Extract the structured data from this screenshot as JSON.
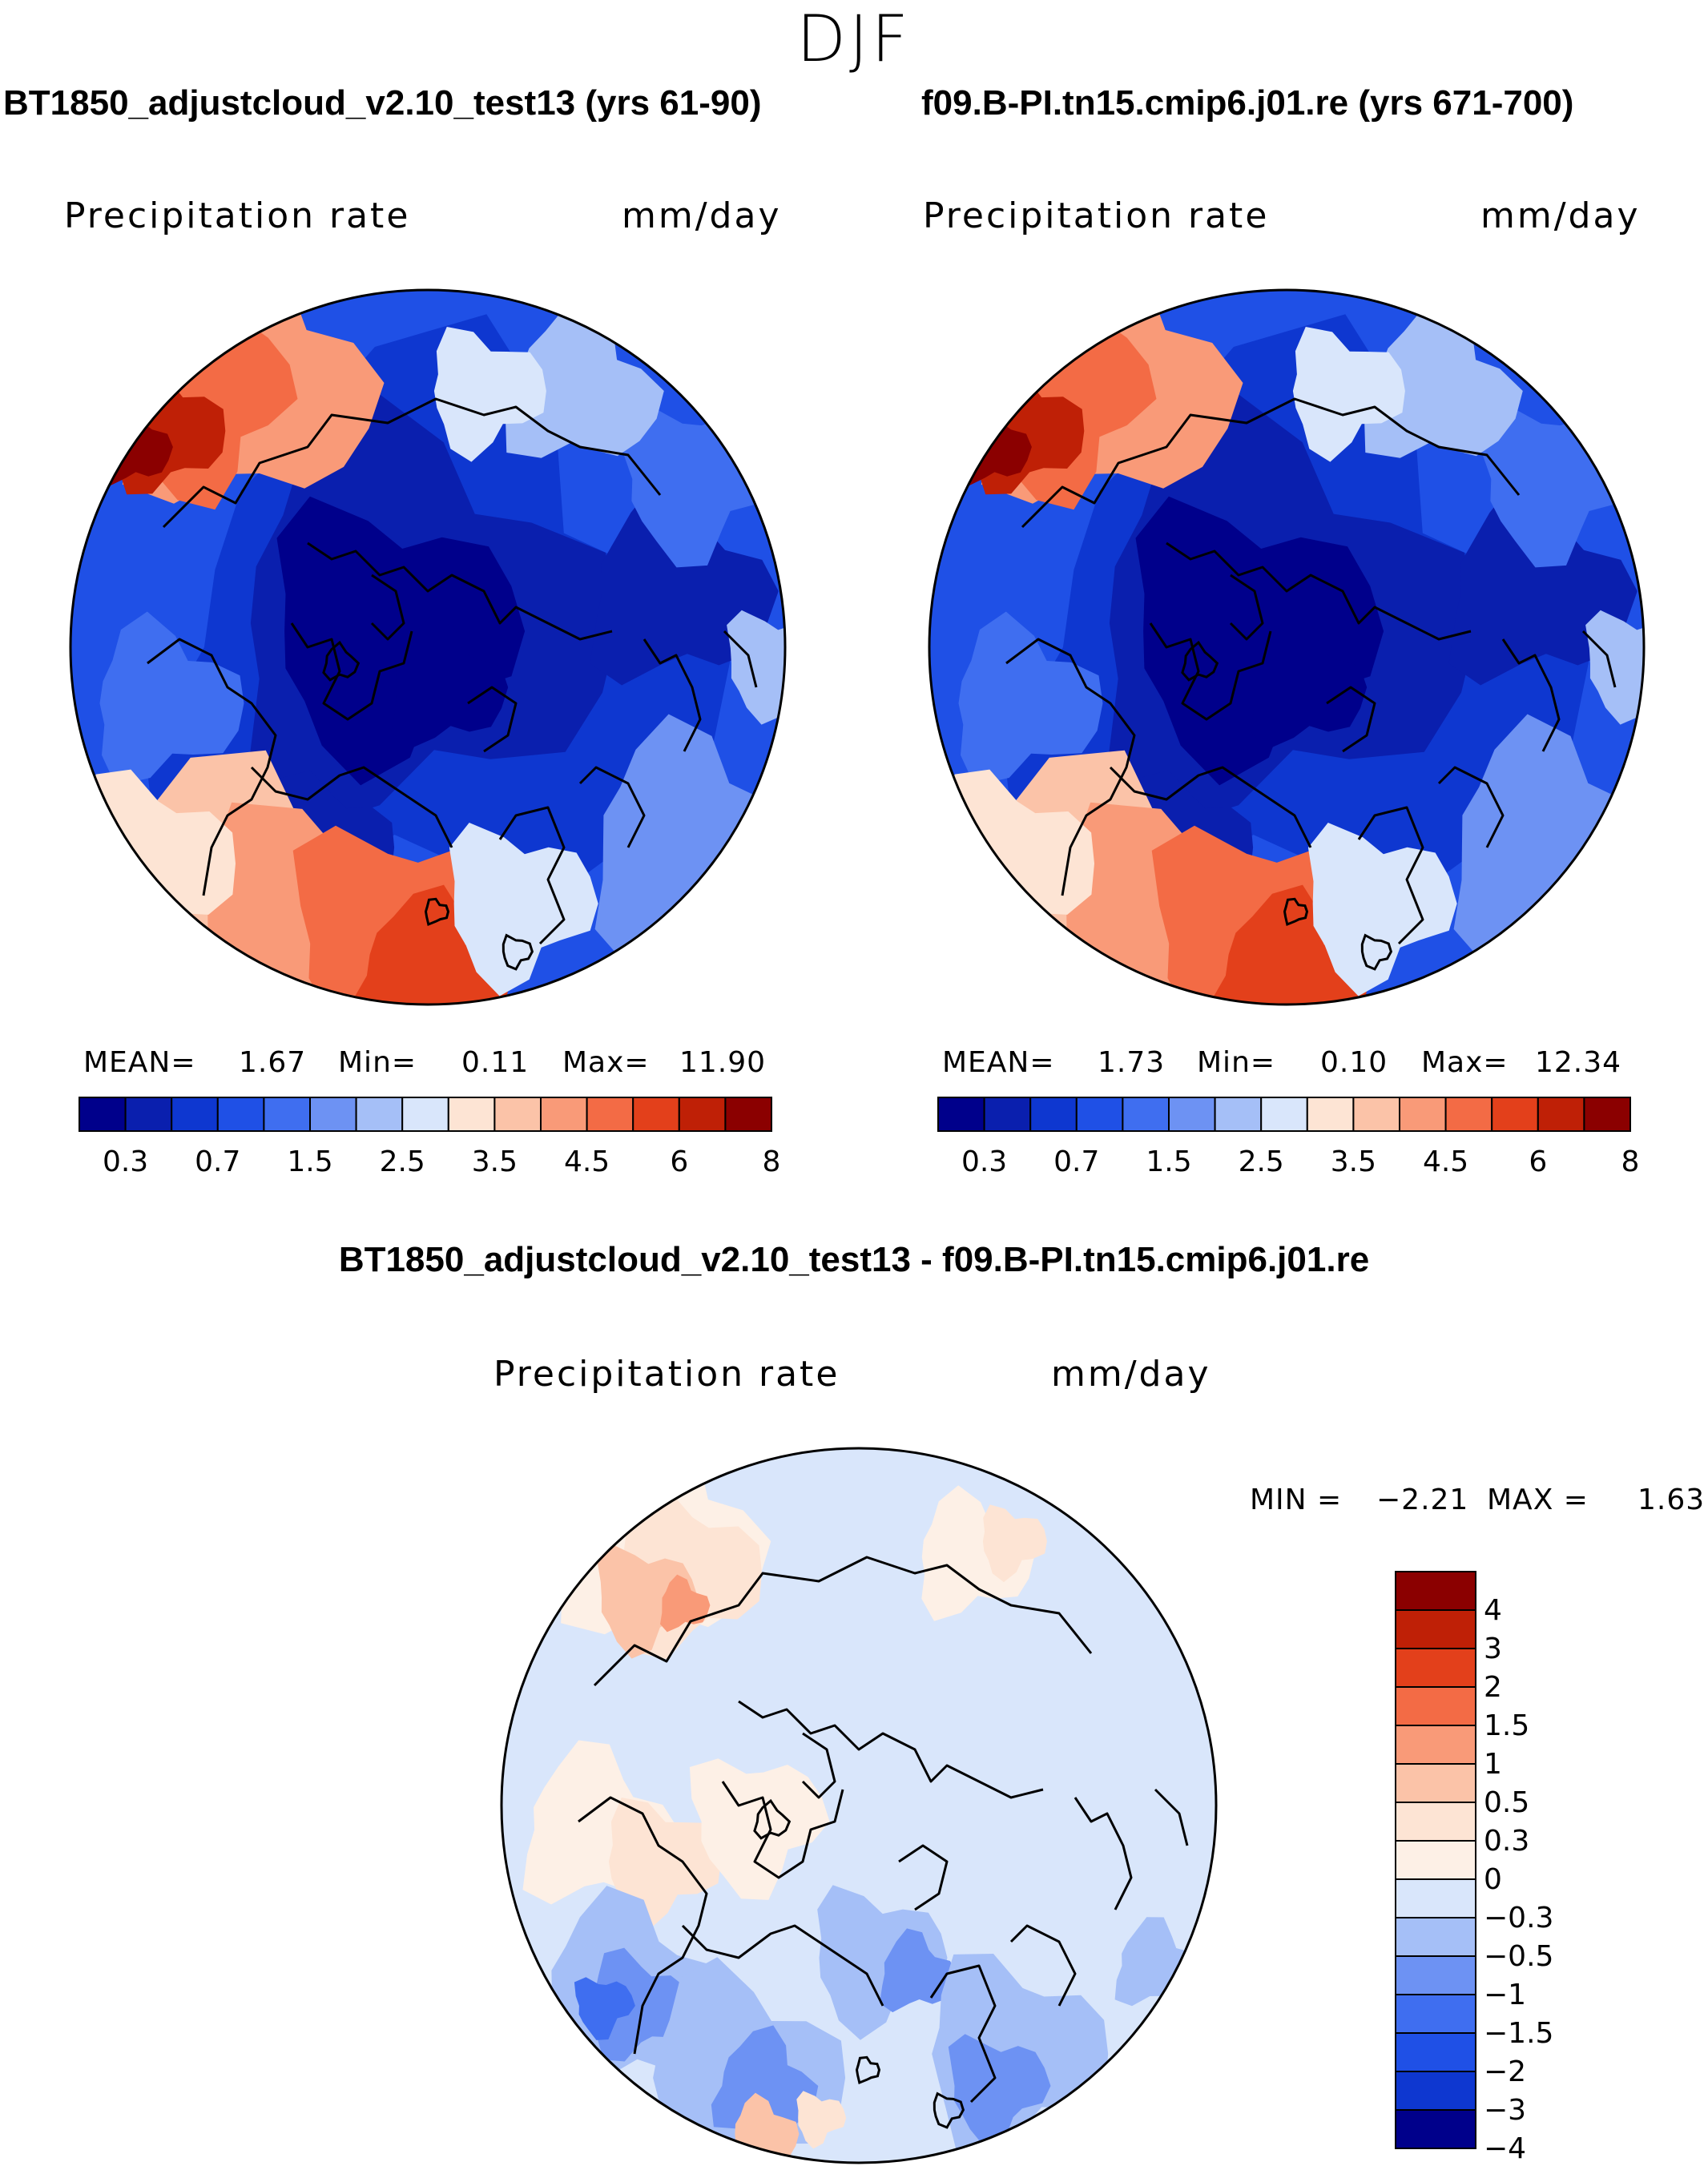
{
  "season": "DJF",
  "panels": [
    {
      "case_title": "BT1850_adjustcloud_v2.10_test13 (yrs 61-90)",
      "variable": "Precipitation rate",
      "units": "mm/day",
      "stats": {
        "mean_label": "MEAN=",
        "mean": "1.67",
        "min_label": "Min=",
        "min": "0.11",
        "max_label": "Max=",
        "max": "11.90"
      }
    },
    {
      "case_title": "f09.B-PI.tn15.cmip6.j01.re (yrs 671-700)",
      "variable": "Precipitation rate",
      "units": "mm/day",
      "stats": {
        "mean_label": "MEAN=",
        "mean": "1.73",
        "min_label": "Min=",
        "min": "0.10",
        "max_label": "Max=",
        "max": "12.34"
      }
    }
  ],
  "diff_panel": {
    "title": "BT1850_adjustcloud_v2.10_test13 - f09.B-PI.tn15.cmip6.j01.re",
    "variable": "Precipitation rate",
    "units": "mm/day",
    "min_label": "MIN =",
    "min": "−2.21",
    "max_label": "MAX =",
    "max": "1.63"
  },
  "chart_data": [
    {
      "type": "heatmap",
      "projection": "north-polar stereographic",
      "title": "BT1850_adjustcloud_v2.10_test13 (yrs 61-90)",
      "subtitle": "Precipitation rate",
      "units": "mm/day",
      "mean": 1.67,
      "min": 0.11,
      "max": 11.9,
      "colorbar_levels": [
        0.3,
        0.5,
        0.7,
        1,
        1.5,
        2,
        2.5,
        3,
        3.5,
        4,
        4.5,
        5,
        6,
        7,
        8
      ],
      "colorbar_tick_labels": [
        "0.3",
        "0.7",
        "1.5",
        "2.5",
        "3.5",
        "4.5",
        "6",
        "8"
      ],
      "colors": [
        "#00008b",
        "#0a1fae",
        "#0e37d0",
        "#1f50e6",
        "#3f6ef0",
        "#6d92f3",
        "#a5bff7",
        "#d9e6fb",
        "#fde4d4",
        "#fbc3a8",
        "#f99a78",
        "#f36b45",
        "#e3401b",
        "#bf2006",
        "#8b0000"
      ]
    },
    {
      "type": "heatmap",
      "projection": "north-polar stereographic",
      "title": "f09.B-PI.tn15.cmip6.j01.re (yrs 671-700)",
      "subtitle": "Precipitation rate",
      "units": "mm/day",
      "mean": 1.73,
      "min": 0.1,
      "max": 12.34,
      "colorbar_levels": [
        0.3,
        0.5,
        0.7,
        1,
        1.5,
        2,
        2.5,
        3,
        3.5,
        4,
        4.5,
        5,
        6,
        7,
        8
      ],
      "colorbar_tick_labels": [
        "0.3",
        "0.7",
        "1.5",
        "2.5",
        "3.5",
        "4.5",
        "6",
        "8"
      ],
      "colors": [
        "#00008b",
        "#0a1fae",
        "#0e37d0",
        "#1f50e6",
        "#3f6ef0",
        "#6d92f3",
        "#a5bff7",
        "#d9e6fb",
        "#fde4d4",
        "#fbc3a8",
        "#f99a78",
        "#f36b45",
        "#e3401b",
        "#bf2006",
        "#8b0000"
      ]
    },
    {
      "type": "heatmap",
      "projection": "north-polar stereographic",
      "title": "BT1850_adjustcloud_v2.10_test13 - f09.B-PI.tn15.cmip6.j01.re",
      "subtitle": "Precipitation rate",
      "units": "mm/day",
      "min": -2.21,
      "max": 1.63,
      "colorbar_levels": [
        4,
        3,
        2,
        1.5,
        1,
        0.5,
        0.3,
        0,
        -0.3,
        -0.5,
        -1,
        -1.5,
        -2,
        -3,
        -4
      ],
      "colorbar_tick_labels": [
        "4",
        "3",
        "2",
        "1.5",
        "1",
        "0.5",
        "0.3",
        "0",
        "−0.3",
        "−0.5",
        "−1",
        "−1.5",
        "−2",
        "−3",
        "−4"
      ],
      "colors": [
        "#8b0000",
        "#bf2006",
        "#e3401b",
        "#f36b45",
        "#f99a78",
        "#fbc3a8",
        "#fde4d4",
        "#fdf0e6",
        "#d9e6fb",
        "#a5bff7",
        "#6d92f3",
        "#3f6ef0",
        "#1f50e6",
        "#0e37d0",
        "#00008b"
      ]
    }
  ]
}
